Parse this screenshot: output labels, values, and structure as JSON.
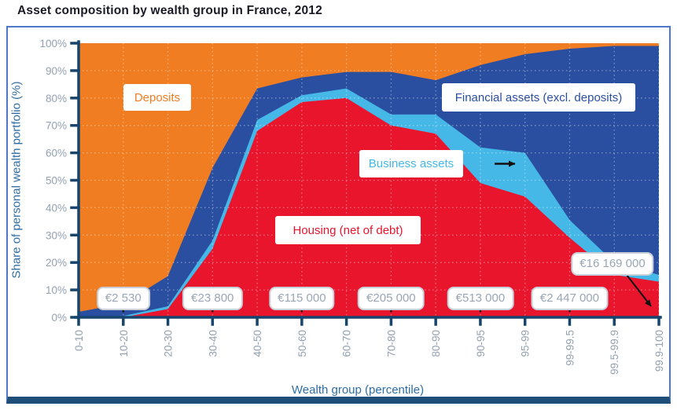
{
  "title": "Asset composition by wealth group in France, 2012",
  "chart_data": {
    "type": "area",
    "stacked": true,
    "title": "Asset composition by wealth group in France, 2012",
    "xlabel": "Wealth group (percentile)",
    "ylabel": "Share of personal wealth portfolio (%)",
    "ylim": [
      0,
      100
    ],
    "y_ticks": [
      0,
      10,
      20,
      30,
      40,
      50,
      60,
      70,
      80,
      90,
      100
    ],
    "y_tick_suffix": "%",
    "grid": "dotted, light, over areas",
    "legend_position": "labels inside plot areas",
    "categories": [
      "0-10",
      "10-20",
      "20-30",
      "30-40",
      "40-50",
      "50-60",
      "60-70",
      "70-80",
      "80-90",
      "90-95",
      "95-99",
      "99-99.5",
      "99.5-99.9",
      "99.9-100"
    ],
    "series": [
      {
        "name": "Housing (net of debt)",
        "color": "#e8152d",
        "values": [
          0,
          0,
          3,
          25,
          68,
          78.5,
          80,
          70,
          67,
          49,
          44,
          29,
          15.5,
          13
        ]
      },
      {
        "name": "Business assets",
        "color": "#45b8e8",
        "values": [
          0,
          0.5,
          1,
          3,
          4,
          2.5,
          3.5,
          4,
          7,
          13,
          16,
          6.5,
          4.5,
          2.5
        ]
      },
      {
        "name": "Financial assets (excl. deposits)",
        "color": "#2a4fa0",
        "values": [
          2,
          4.5,
          11,
          26.5,
          11.5,
          6.5,
          6,
          15.5,
          12.5,
          30,
          36,
          62.5,
          79,
          83.5
        ]
      },
      {
        "name": "Deposits",
        "color": "#f07d22",
        "values": [
          98,
          95,
          85,
          45.5,
          16.5,
          12.5,
          10.5,
          10.5,
          13.5,
          8,
          4,
          2,
          1,
          1
        ]
      }
    ],
    "annotations": [
      {
        "label": "€2 530",
        "category": "10-20",
        "category_index": 1
      },
      {
        "label": "€23 800",
        "category": "30-40",
        "category_index": 3
      },
      {
        "label": "€115 000",
        "category": "50-60",
        "category_index": 5
      },
      {
        "label": "€205 000",
        "category": "70-80",
        "category_index": 7
      },
      {
        "label": "€513 000",
        "category": "90-95",
        "category_index": 9
      },
      {
        "label": "€2 447 000",
        "category": "99-99.5",
        "category_index": 11
      },
      {
        "label": "€16 169 000",
        "category": "99.9-100",
        "category_index": 13,
        "elevated": true
      }
    ]
  },
  "colors": {
    "title_text": "#1a1a26",
    "frame_border": "#4c79c7",
    "frame_bottom": "#1f4e79",
    "axis": "#17456e",
    "tick_label": "#93a1b1",
    "axis_title": "#2e6da4",
    "annotation_text": "#9aa6b5",
    "annotation_border": "#c9cfd8",
    "arrow": "#111111",
    "grid": "rgba(255,255,255,0.38)"
  }
}
